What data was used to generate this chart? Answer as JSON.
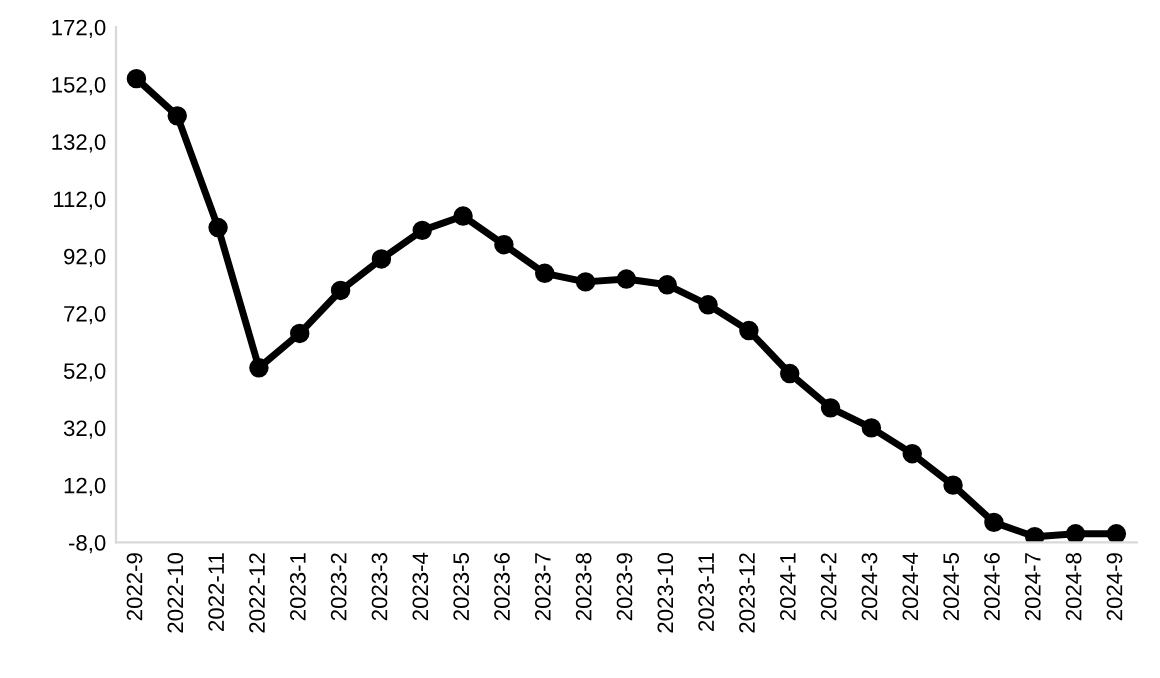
{
  "chart_data": {
    "type": "line",
    "categories": [
      "2022-9",
      "2022-10",
      "2022-11",
      "2022-12",
      "2023-1",
      "2023-2",
      "2023-3",
      "2023-4",
      "2023-5",
      "2023-6",
      "2023-7",
      "2023-8",
      "2023-9",
      "2023-10",
      "2023-11",
      "2023-12",
      "2024-1",
      "2024-2",
      "2024-3",
      "2024-4",
      "2024-5",
      "2024-6",
      "2024-7",
      "2024-8",
      "2024-9"
    ],
    "series": [
      {
        "color": "#000000",
        "values": [
          154,
          141,
          102,
          53,
          65,
          80,
          91,
          101,
          106,
          96,
          86,
          83,
          84,
          82,
          75,
          66,
          51,
          39,
          32,
          23,
          12,
          -1,
          -6,
          -5,
          -5
        ]
      }
    ],
    "ylim": [
      -8,
      172
    ],
    "yticks": [
      {
        "value": -8,
        "label": "-8,0"
      },
      {
        "value": 12,
        "label": "12,0"
      },
      {
        "value": 32,
        "label": "32,0"
      },
      {
        "value": 52,
        "label": "52,0"
      },
      {
        "value": 72,
        "label": "72,0"
      },
      {
        "value": 92,
        "label": "92,0"
      },
      {
        "value": 112,
        "label": "112,0"
      },
      {
        "value": 132,
        "label": "132,0"
      },
      {
        "value": 152,
        "label": "152,0"
      },
      {
        "value": 172,
        "label": "172,0"
      }
    ],
    "marker": "circle",
    "line_style": "solid",
    "grid": false,
    "legend": false
  }
}
